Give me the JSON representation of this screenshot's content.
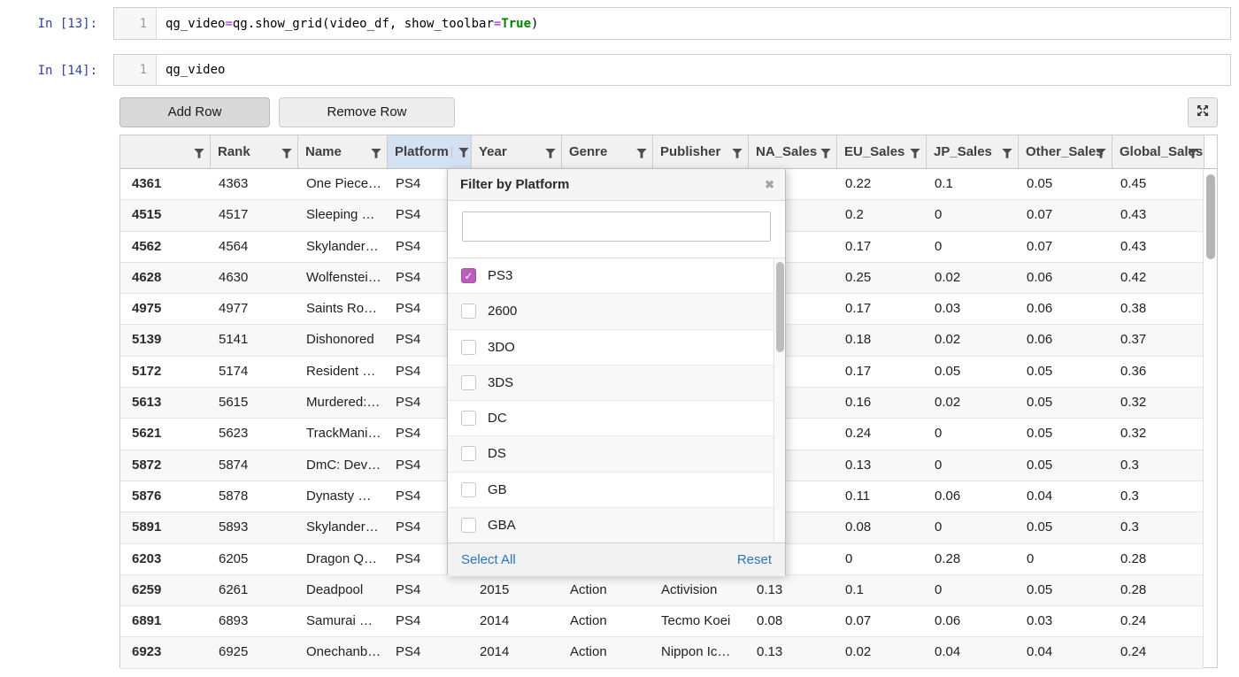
{
  "cells": [
    {
      "prompt": "In [13]:",
      "line_number": "1",
      "tokens": [
        {
          "text": "qg_video ",
          "style": "plain"
        },
        {
          "text": "=",
          "style": "operator"
        },
        {
          "text": " qg.show_grid(video_df, show_toolbar",
          "style": "plain"
        },
        {
          "text": "=",
          "style": "operator"
        },
        {
          "text": "True",
          "style": "keyword"
        },
        {
          "text": ")",
          "style": "plain"
        }
      ]
    },
    {
      "prompt": "In [14]:",
      "line_number": "1",
      "tokens": [
        {
          "text": "qg_video",
          "style": "plain"
        }
      ]
    }
  ],
  "toolbar": {
    "add_row_label": "Add Row",
    "remove_row_label": "Remove Row",
    "expand_icon": "arrows-out-icon"
  },
  "grid": {
    "columns": [
      {
        "label": "",
        "filter_active": false
      },
      {
        "label": "Rank",
        "filter_active": false
      },
      {
        "label": "Name",
        "filter_active": false
      },
      {
        "label": "Platform",
        "filter_active": true
      },
      {
        "label": "Year",
        "filter_active": false
      },
      {
        "label": "Genre",
        "filter_active": false
      },
      {
        "label": "Publisher",
        "filter_active": false
      },
      {
        "label": "NA_Sales",
        "filter_active": false
      },
      {
        "label": "EU_Sales",
        "filter_active": false
      },
      {
        "label": "JP_Sales",
        "filter_active": false
      },
      {
        "label": "Other_Sales",
        "filter_active": false
      },
      {
        "label": "Global_Sales",
        "filter_active": false
      }
    ],
    "rows": [
      [
        "4361",
        "4363",
        "One Piece…",
        "PS4",
        "",
        "",
        "",
        "",
        "0.22",
        "0.1",
        "0.05",
        "0.45"
      ],
      [
        "4515",
        "4517",
        "Sleeping …",
        "PS4",
        "",
        "",
        "",
        "",
        "0.2",
        "0",
        "0.07",
        "0.43"
      ],
      [
        "4562",
        "4564",
        "Skylander…",
        "PS4",
        "",
        "",
        "",
        "",
        "0.17",
        "0",
        "0.07",
        "0.43"
      ],
      [
        "4628",
        "4630",
        "Wolfenstei…",
        "PS4",
        "",
        "",
        "",
        "",
        "0.25",
        "0.02",
        "0.06",
        "0.42"
      ],
      [
        "4975",
        "4977",
        "Saints Ro…",
        "PS4",
        "",
        "",
        "",
        "",
        "0.17",
        "0.03",
        "0.06",
        "0.38"
      ],
      [
        "5139",
        "5141",
        "Dishonored",
        "PS4",
        "",
        "",
        "",
        "",
        "0.18",
        "0.02",
        "0.06",
        "0.37"
      ],
      [
        "5172",
        "5174",
        "Resident …",
        "PS4",
        "",
        "",
        "",
        "",
        "0.17",
        "0.05",
        "0.05",
        "0.36"
      ],
      [
        "5613",
        "5615",
        "Murdered:…",
        "PS4",
        "",
        "",
        "",
        "",
        "0.16",
        "0.02",
        "0.05",
        "0.32"
      ],
      [
        "5621",
        "5623",
        "TrackMani…",
        "PS4",
        "",
        "",
        "",
        "",
        "0.24",
        "0",
        "0.05",
        "0.32"
      ],
      [
        "5872",
        "5874",
        "DmC: Dev…",
        "PS4",
        "",
        "",
        "",
        "",
        "0.13",
        "0",
        "0.05",
        "0.3"
      ],
      [
        "5876",
        "5878",
        "Dynasty …",
        "PS4",
        "",
        "",
        "",
        "",
        "0.11",
        "0.06",
        "0.04",
        "0.3"
      ],
      [
        "5891",
        "5893",
        "Skylander…",
        "PS4",
        "",
        "",
        "",
        "",
        "0.08",
        "0",
        "0.05",
        "0.3"
      ],
      [
        "6203",
        "6205",
        "Dragon Q…",
        "PS4",
        "",
        "",
        "",
        "",
        "0",
        "0.28",
        "0",
        "0.28"
      ],
      [
        "6259",
        "6261",
        "Deadpool",
        "PS4",
        "2015",
        "Action",
        "Activision",
        "0.13",
        "0.1",
        "0",
        "0.05",
        "0.28"
      ],
      [
        "6891",
        "6893",
        "Samurai …",
        "PS4",
        "2014",
        "Action",
        "Tecmo Koei",
        "0.08",
        "0.07",
        "0.06",
        "0.03",
        "0.24"
      ],
      [
        "6923",
        "6925",
        "Onechanb…",
        "PS4",
        "2014",
        "Action",
        "Nippon Ic…",
        "0.13",
        "0.02",
        "0.04",
        "0.04",
        "0.24"
      ]
    ]
  },
  "filter_popup": {
    "title": "Filter by Platform",
    "close_icon": "✖",
    "search_value": "",
    "items": [
      {
        "label": "PS3",
        "checked": true
      },
      {
        "label": "2600",
        "checked": false
      },
      {
        "label": "3DO",
        "checked": false
      },
      {
        "label": "3DS",
        "checked": false
      },
      {
        "label": "DC",
        "checked": false
      },
      {
        "label": "DS",
        "checked": false
      },
      {
        "label": "GB",
        "checked": false
      },
      {
        "label": "GBA",
        "checked": false
      }
    ],
    "select_all_label": "Select All",
    "reset_label": "Reset"
  },
  "colors": {
    "prompt_blue": "#303f9f",
    "operator_purple": "#aa22ff",
    "keyword_green": "#008000",
    "active_filter_header": "#d4e1f3",
    "checked_checkbox": "#bb5ebb",
    "link_blue": "#2a76bd"
  }
}
